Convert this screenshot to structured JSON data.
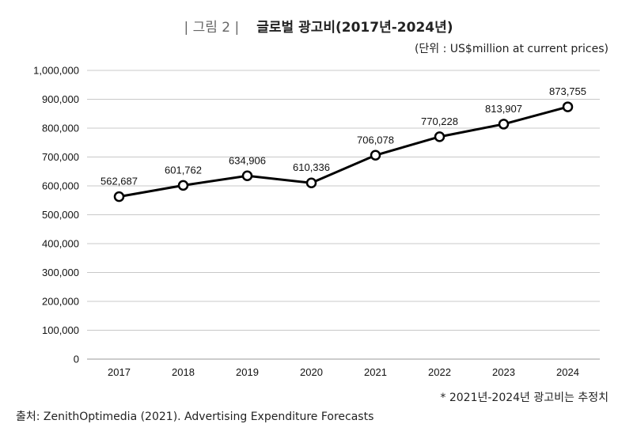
{
  "figure_label": "| 그림 2 |",
  "unit": "(단위 : US$million at current prices)",
  "note": "* 2021년-2024년 광고비는 추정치",
  "source": "출처: ZenithOptimedia (2021). Advertising Expenditure Forecasts",
  "chart_data": {
    "type": "line",
    "title": "글로벌 광고비(2017년-2024년)",
    "categories": [
      "2017",
      "2018",
      "2019",
      "2020",
      "2021",
      "2022",
      "2023",
      "2024"
    ],
    "values": [
      562687,
      601762,
      634906,
      610336,
      706078,
      770228,
      813907,
      873755
    ],
    "data_labels": [
      "562,687",
      "601,762",
      "634,906",
      "610,336",
      "706,078",
      "770,228",
      "813,907",
      "873,755"
    ],
    "ylim": [
      0,
      1000000
    ],
    "yticks": [
      "0",
      "100,000",
      "200,000",
      "300,000",
      "400,000",
      "500,000",
      "600,000",
      "700,000",
      "800,000",
      "900,000",
      "1,000,000"
    ],
    "grid": true,
    "line_color": "#000000",
    "marker": "hollow-circle",
    "legend": "none"
  }
}
